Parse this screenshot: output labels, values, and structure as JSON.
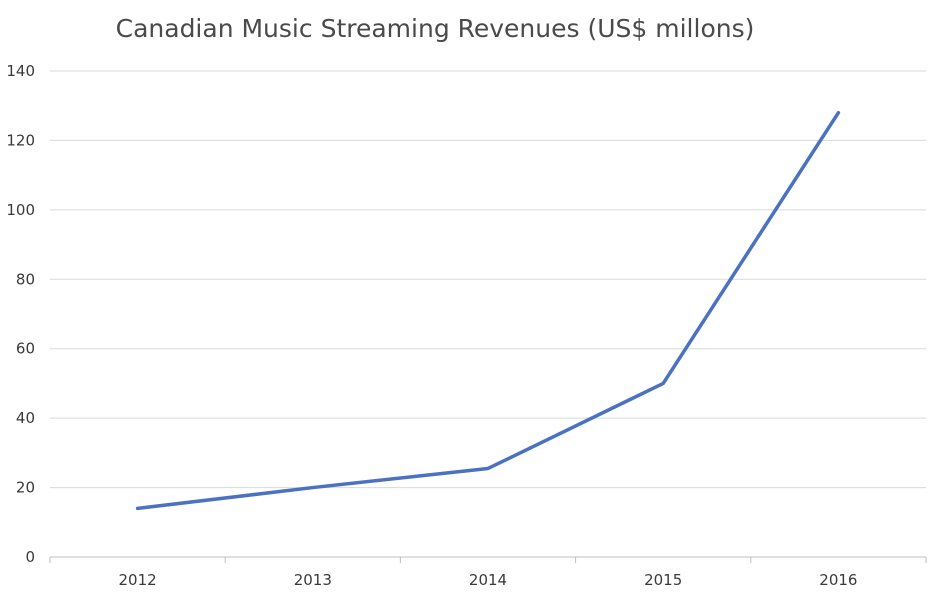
{
  "chart_data": {
    "type": "line",
    "title": "Canadian Music Streaming Revenues (US$ millons)",
    "xlabel": "",
    "ylabel": "",
    "categories": [
      "2012",
      "2013",
      "2014",
      "2015",
      "2016"
    ],
    "series": [
      {
        "values": [
          14,
          20,
          25.5,
          50,
          128
        ],
        "color": "#4a72c0"
      }
    ],
    "ylim": [
      0,
      140
    ],
    "yticks": [
      0,
      20,
      40,
      60,
      80,
      100,
      120,
      140
    ],
    "grid": true,
    "legend": "none",
    "colors": {
      "grid": "#d9d9d9",
      "axis": "#bfbfbf",
      "text": "#3a3a3a"
    }
  }
}
